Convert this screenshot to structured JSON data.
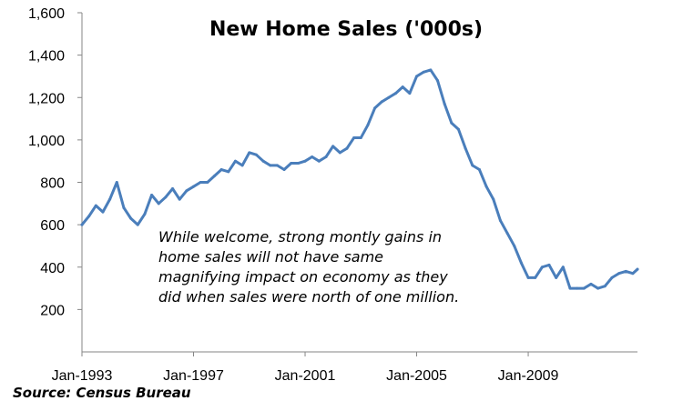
{
  "chart_data": {
    "type": "line",
    "title": "New Home Sales ('000s)",
    "xlabel": "",
    "ylabel": "",
    "ylim": [
      0,
      1600
    ],
    "yticks": [
      {
        "value": 200,
        "label": "200"
      },
      {
        "value": 400,
        "label": "400"
      },
      {
        "value": 600,
        "label": "600"
      },
      {
        "value": 800,
        "label": "800"
      },
      {
        "value": 1000,
        "label": "1,000"
      },
      {
        "value": 1200,
        "label": "1,200"
      },
      {
        "value": 1400,
        "label": "1,400"
      },
      {
        "value": 1600,
        "label": "1,600"
      }
    ],
    "xlim": [
      "1993-01",
      "2012-12"
    ],
    "xticks": [
      {
        "value": "1993-01",
        "label": "Jan-1993"
      },
      {
        "value": "1997-01",
        "label": "Jan-1997"
      },
      {
        "value": "2001-01",
        "label": "Jan-2001"
      },
      {
        "value": "2005-01",
        "label": "Jan-2005"
      },
      {
        "value": "2009-01",
        "label": "Jan-2009"
      }
    ],
    "grid": false,
    "line_color": "#4a7ebb",
    "annotation": "While welcome, strong montly gains in home sales will not have same magnifying impact on economy as they did when sales were north of one million.",
    "source": "Source: Census Bureau",
    "series": [
      {
        "x": [
          "1993-01",
          "1993-04",
          "1993-07",
          "1993-10",
          "1994-01",
          "1994-04",
          "1994-07",
          "1994-10",
          "1995-01",
          "1995-04",
          "1995-07",
          "1995-10",
          "1996-01",
          "1996-04",
          "1996-07",
          "1996-10",
          "1997-01",
          "1997-04",
          "1997-07",
          "1997-10",
          "1998-01",
          "1998-04",
          "1998-07",
          "1998-10",
          "1999-01",
          "1999-04",
          "1999-07",
          "1999-10",
          "2000-01",
          "2000-04",
          "2000-07",
          "2000-10",
          "2001-01",
          "2001-04",
          "2001-07",
          "2001-10",
          "2002-01",
          "2002-04",
          "2002-07",
          "2002-10",
          "2003-01",
          "2003-04",
          "2003-07",
          "2003-10",
          "2004-01",
          "2004-04",
          "2004-07",
          "2004-10",
          "2005-01",
          "2005-04",
          "2005-07",
          "2005-10",
          "2006-01",
          "2006-04",
          "2006-07",
          "2006-10",
          "2007-01",
          "2007-04",
          "2007-07",
          "2007-10",
          "2008-01",
          "2008-04",
          "2008-07",
          "2008-10",
          "2009-01",
          "2009-04",
          "2009-07",
          "2009-10",
          "2010-01",
          "2010-04",
          "2010-07",
          "2010-10",
          "2011-01",
          "2011-04",
          "2011-07",
          "2011-10",
          "2012-01",
          "2012-04",
          "2012-07",
          "2012-10",
          "2012-12"
        ],
        "values": [
          600,
          640,
          690,
          660,
          720,
          800,
          680,
          630,
          600,
          650,
          740,
          700,
          730,
          770,
          720,
          760,
          780,
          800,
          800,
          830,
          860,
          850,
          900,
          880,
          940,
          930,
          900,
          880,
          880,
          860,
          890,
          890,
          900,
          920,
          900,
          920,
          970,
          940,
          960,
          1010,
          1010,
          1070,
          1150,
          1180,
          1200,
          1220,
          1250,
          1220,
          1300,
          1320,
          1330,
          1280,
          1170,
          1080,
          1050,
          960,
          880,
          860,
          780,
          720,
          620,
          560,
          500,
          420,
          350,
          350,
          400,
          410,
          350,
          400,
          300,
          300,
          300,
          320,
          300,
          310,
          350,
          370,
          380,
          370,
          390
        ]
      }
    ]
  }
}
